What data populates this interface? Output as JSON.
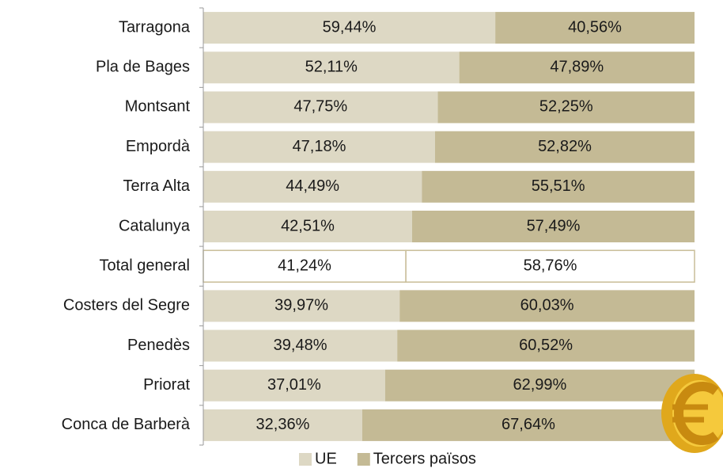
{
  "chart_data": {
    "type": "stacked-bar-horizontal",
    "categories": [
      "Tarragona",
      "Pla de Bages",
      "Montsant",
      "Empordà",
      "Terra Alta",
      "Catalunya",
      "Total general",
      "Costers del Segre",
      "Penedès",
      "Priorat",
      "Conca de Barberà"
    ],
    "series": [
      {
        "name": "UE",
        "color": "#ddd8c4",
        "values": [
          59.44,
          52.11,
          47.75,
          47.18,
          44.49,
          42.51,
          41.24,
          39.97,
          39.48,
          37.01,
          32.36
        ],
        "value_labels": [
          "59,44%",
          "52,11%",
          "47,75%",
          "47,18%",
          "44,49%",
          "42,51%",
          "41,24%",
          "39,97%",
          "39,48%",
          "37,01%",
          "32,36%"
        ]
      },
      {
        "name": "Tercers països",
        "color": "#c4ba95",
        "values": [
          40.56,
          47.89,
          52.25,
          52.82,
          55.51,
          57.49,
          58.76,
          60.03,
          60.52,
          62.99,
          67.64
        ],
        "value_labels": [
          "40,56%",
          "47,89%",
          "52,25%",
          "52,82%",
          "55,51%",
          "57,49%",
          "58,76%",
          "60,03%",
          "60,52%",
          "62,99%",
          "67,64%"
        ]
      }
    ],
    "xlim": [
      0,
      100
    ],
    "highlight": {
      "category_index": 6,
      "fill": "#ffffff",
      "stroke": "#c8bd98"
    },
    "legend": "bottom"
  }
}
